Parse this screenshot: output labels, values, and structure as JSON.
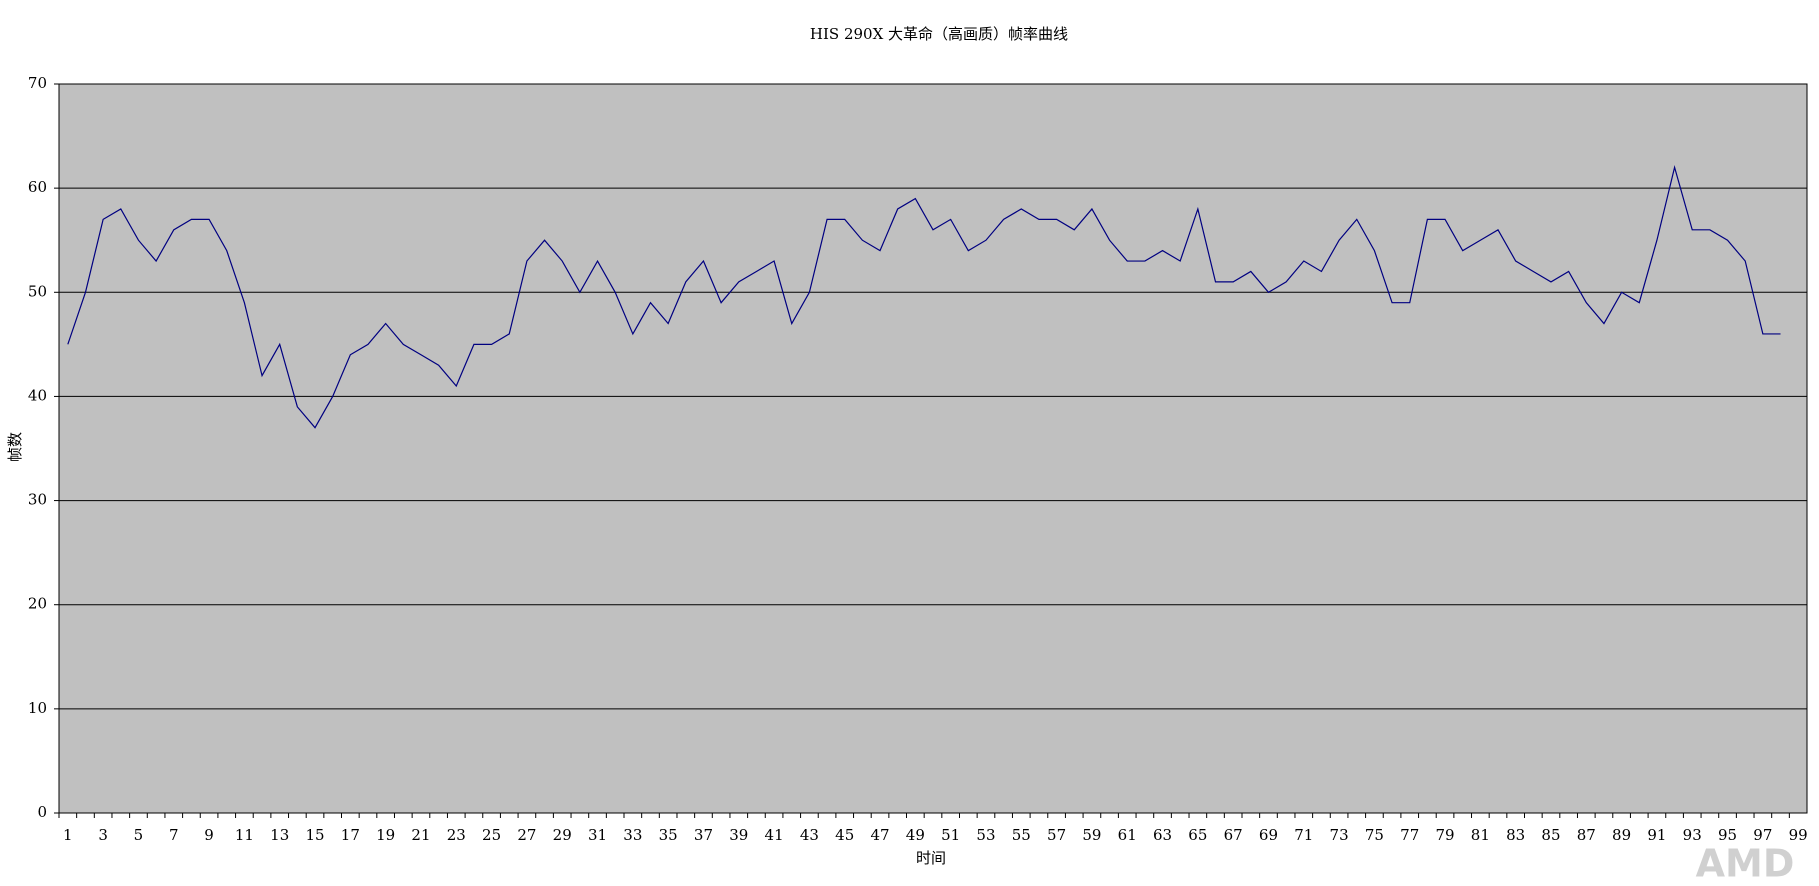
{
  "chart_data": {
    "type": "line",
    "title": "HIS 290X 大革命（高画质）帧率曲线",
    "x_label": "时间",
    "y_label": "帧数",
    "watermark": "AMD",
    "categories": [
      "1",
      null,
      "3",
      null,
      "5",
      null,
      "7",
      null,
      "9",
      null,
      "11",
      null,
      "13",
      null,
      "15",
      null,
      "17",
      null,
      "19",
      null,
      "21",
      null,
      "23",
      null,
      "25",
      null,
      "27",
      null,
      "29",
      null,
      "31",
      null,
      "33",
      null,
      "35",
      null,
      "37",
      null,
      "39",
      null,
      "41",
      null,
      "43",
      null,
      "45",
      null,
      "47",
      null,
      "49",
      null,
      "51",
      null,
      "53",
      null,
      "55",
      null,
      "57",
      null,
      "59",
      null,
      "61",
      null,
      "63",
      null,
      "65",
      null,
      "67",
      null,
      "69",
      null,
      "71",
      null,
      "73",
      null,
      "75",
      null,
      "77",
      null,
      "79",
      null,
      "81",
      null,
      "83",
      null,
      "85",
      null,
      "87",
      null,
      "89",
      null,
      "91",
      null,
      "93",
      null,
      "95",
      null,
      "97",
      null,
      "99"
    ],
    "values": [
      45,
      50,
      57,
      58,
      55,
      53,
      56,
      57,
      57,
      54,
      49,
      42,
      45,
      39,
      37,
      40,
      44,
      45,
      47,
      45,
      44,
      43,
      41,
      45,
      45,
      46,
      53,
      55,
      53,
      50,
      53,
      50,
      46,
      49,
      47,
      51,
      53,
      49,
      51,
      52,
      53,
      47,
      50,
      57,
      57,
      55,
      54,
      58,
      59,
      56,
      57,
      54,
      55,
      57,
      58,
      57,
      57,
      56,
      58,
      55,
      53,
      53,
      54,
      53,
      58,
      51,
      51,
      52,
      50,
      51,
      53,
      52,
      55,
      57,
      54,
      49,
      49,
      57,
      57,
      54,
      55,
      56,
      53,
      52,
      51,
      52,
      49,
      47,
      50,
      49,
      55,
      62,
      56,
      56,
      55,
      53,
      46,
      46,
      null
    ],
    "color": "#000080",
    "plot_background": "#c0c0c0",
    "ylim": [
      0,
      70
    ],
    "yticks": [
      0,
      10,
      20,
      30,
      40,
      50,
      60,
      70
    ],
    "grid": true
  }
}
